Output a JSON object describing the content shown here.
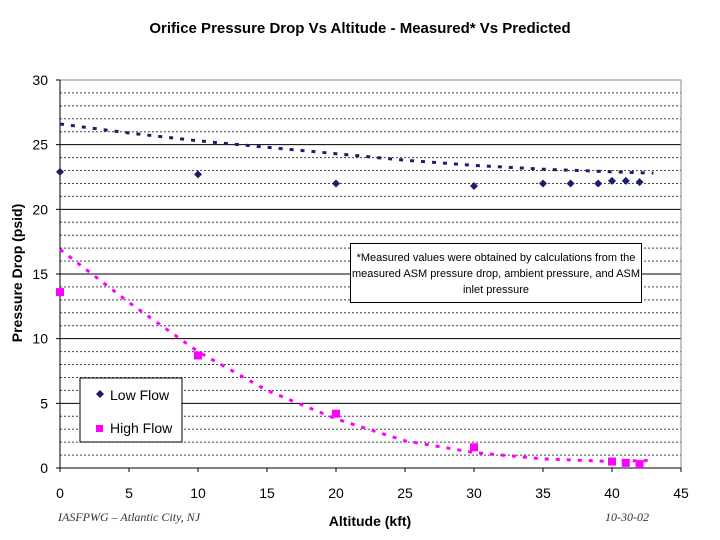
{
  "chart_data": {
    "type": "scatter",
    "title": "Orifice Pressure Drop Vs Altitude - Measured* Vs Predicted",
    "xlabel": "Altitude (kft)",
    "ylabel": "Pressure Drop (psid)",
    "xlim": [
      0,
      45
    ],
    "ylim": [
      0,
      30
    ],
    "x_ticks": [
      0,
      5,
      10,
      15,
      20,
      25,
      30,
      35,
      40,
      45
    ],
    "y_ticks": [
      0,
      5,
      10,
      15,
      20,
      25,
      30
    ],
    "legend_position": "bottom-left",
    "series": [
      {
        "name": "Low Flow",
        "marker": "diamond",
        "color": "#1a1f6b",
        "x": [
          0,
          10,
          20,
          30,
          35,
          37,
          39,
          40,
          41,
          42
        ],
        "y": [
          22.9,
          22.7,
          22.0,
          21.8,
          22.0,
          22.0,
          22.0,
          22.2,
          22.2,
          22.1
        ]
      },
      {
        "name": "High Flow",
        "marker": "square",
        "color": "#ff00ff",
        "x": [
          0,
          10,
          20,
          30,
          40,
          41,
          42
        ],
        "y": [
          13.6,
          8.7,
          4.2,
          1.6,
          0.5,
          0.4,
          0.3
        ]
      }
    ],
    "predicted": [
      {
        "name": "Low Flow Predicted",
        "style": "dashed",
        "color": "#1a1f6b",
        "x": [
          0,
          5,
          10,
          15,
          20,
          25,
          30,
          35,
          40,
          43
        ],
        "y": [
          26.6,
          25.9,
          25.3,
          24.8,
          24.3,
          23.8,
          23.4,
          23.1,
          22.9,
          22.8
        ]
      },
      {
        "name": "High Flow Predicted",
        "style": "dashed",
        "color": "#ff00ff",
        "x": [
          0,
          5,
          10,
          15,
          20,
          25,
          30,
          35,
          40,
          43
        ],
        "y": [
          16.9,
          12.8,
          9.0,
          6.0,
          3.8,
          2.1,
          1.2,
          0.7,
          0.5,
          0.6
        ]
      }
    ],
    "annotation": "*Measured values were obtained by calculations from the measured ASM pressure drop, ambient pressure, and ASM inlet pressure"
  },
  "footer": {
    "left": "IASFPWG – Atlantic City, NJ",
    "right": "10-30-02"
  }
}
